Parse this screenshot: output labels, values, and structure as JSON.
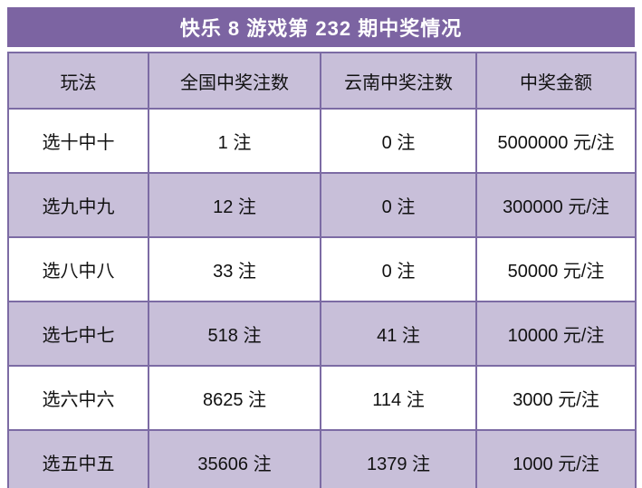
{
  "page": {
    "title": "快乐 8 游戏第 232 期中奖情况"
  },
  "colors": {
    "title_bar_bg": "#7C64A2",
    "stripe_bg": "#C8BFD9",
    "border": "#7C6BA4",
    "title_text": "#ffffff",
    "cell_text": "#111111"
  },
  "table": {
    "headers": [
      "玩法",
      "全国中奖注数",
      "云南中奖注数",
      "中奖金额"
    ],
    "rows": [
      {
        "play": "选十中十",
        "national": "1 注",
        "yunnan": "0 注",
        "amount": "5000000 元/注"
      },
      {
        "play": "选九中九",
        "national": "12 注",
        "yunnan": "0 注",
        "amount": "300000 元/注"
      },
      {
        "play": "选八中八",
        "national": "33 注",
        "yunnan": "0 注",
        "amount": "50000 元/注"
      },
      {
        "play": "选七中七",
        "national": "518 注",
        "yunnan": "41 注",
        "amount": "10000 元/注"
      },
      {
        "play": "选六中六",
        "national": "8625 注",
        "yunnan": "114 注",
        "amount": "3000 元/注"
      },
      {
        "play": "选五中五",
        "national": "35606 注",
        "yunnan": "1379 注",
        "amount": "1000 元/注"
      }
    ]
  }
}
